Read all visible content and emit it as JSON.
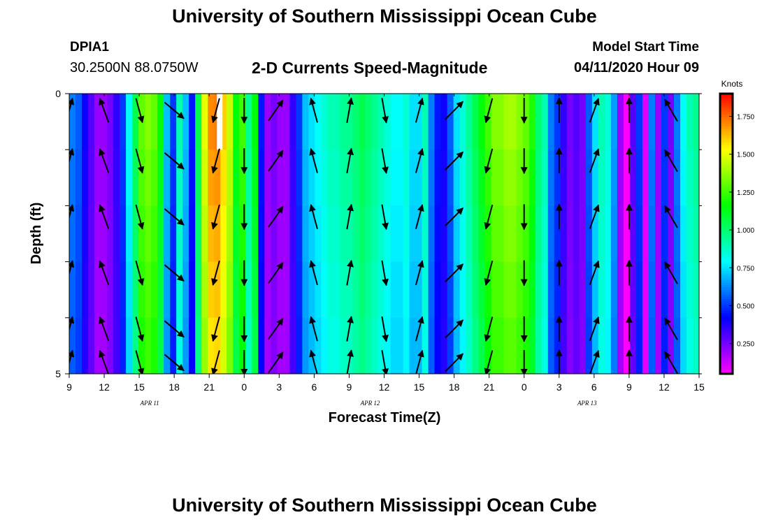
{
  "header": {
    "title": "University of Southern Mississippi Ocean Cube",
    "station_id": "DPIA1",
    "coords": "30.2500N 88.0750W",
    "chart_title": "2-D Currents Speed-Magnitude",
    "start_label": "Model Start Time",
    "start_time": "04/11/2020 Hour 09"
  },
  "footer": {
    "title": "University of Southern Mississippi Ocean Cube"
  },
  "chart_data": {
    "type": "heatmap",
    "xlabel": "Forecast Time(Z)",
    "ylabel": "Depth (ft)",
    "x_tick_labels": [
      "9",
      "12",
      "15",
      "18",
      "21",
      "0",
      "3",
      "6",
      "9",
      "12",
      "15",
      "18",
      "21",
      "0",
      "3",
      "6",
      "9",
      "12",
      "15"
    ],
    "date_labels": [
      {
        "label": "APR 11",
        "tick_index": 2.3
      },
      {
        "label": "APR 12",
        "tick_index": 8.6
      },
      {
        "label": "APR 13",
        "tick_index": 14.8
      }
    ],
    "y_tick_labels": [
      "0",
      "5"
    ],
    "ylim": [
      0,
      5
    ],
    "colorbar": {
      "unit": "Knots",
      "min": 0.05,
      "max": 1.9,
      "ticks": [
        "1.750",
        "1.500",
        "1.250",
        "1.000",
        "0.750",
        "0.500",
        "0.250"
      ],
      "tick_values": [
        1.75,
        1.5,
        1.25,
        1.0,
        0.75,
        0.5,
        0.25
      ]
    },
    "speed_profile": [
      0.6,
      0.55,
      0.4,
      0.3,
      0.2,
      0.2,
      0.25,
      0.35,
      0.5,
      0.8,
      1.05,
      1.3,
      1.35,
      1.3,
      1.15,
      0.7,
      0.5,
      0.9,
      0.7,
      0.45,
      1.05,
      1.5,
      1.7,
      1.72,
      1.6,
      1.45,
      1.15,
      1.25,
      0.95,
      1.15,
      0.45,
      0.2,
      0.25,
      0.2,
      0.2,
      0.35,
      0.5,
      0.7,
      0.75,
      0.8,
      0.85,
      0.9,
      0.9,
      0.95,
      0.95,
      1.0,
      1.05,
      1.0,
      0.95,
      0.9,
      0.85,
      0.8,
      0.8,
      0.85,
      0.75,
      0.75,
      0.9,
      0.6,
      0.45,
      0.4,
      0.55,
      0.75,
      0.85,
      0.95,
      1.05,
      1.15,
      1.25,
      1.35,
      1.35,
      1.4,
      1.4,
      1.35,
      1.3,
      1.2,
      1.0,
      0.9,
      0.6,
      0.5,
      0.35,
      0.25,
      0.3,
      0.25,
      0.55,
      0.75,
      0.9,
      0.85,
      0.65,
      0.2,
      0.05,
      0.3,
      0.5,
      0.1,
      0.6,
      0.2,
      0.5,
      0.25,
      0.6,
      0.8,
      0.9,
      0.95
    ],
    "depth_factors": [
      1.0,
      0.98,
      0.96,
      0.94,
      0.92
    ],
    "vector_times": [
      0.0,
      1.0,
      2.0,
      3.0,
      4.2,
      5.0,
      5.9,
      7.0,
      8.0,
      9.0,
      10.0,
      11.0,
      12.0,
      13.0,
      14.0,
      15.0,
      16.0,
      17.2
    ],
    "vector_depths": [
      0.3,
      1.2,
      2.2,
      3.2,
      4.2,
      4.8
    ],
    "vector_angles_deg": [
      15,
      -20,
      15,
      50,
      -15,
      0,
      35,
      -15,
      10,
      10,
      15,
      45,
      -15,
      0,
      0,
      20,
      0,
      -30
    ],
    "vector_magnitudes": [
      0.6,
      0.3,
      1.2,
      1.0,
      1.7,
      1.6,
      0.3,
      0.4,
      0.9,
      1.0,
      0.9,
      0.9,
      1.4,
      1.4,
      0.5,
      0.5,
      0.3,
      0.6
    ],
    "missing_patch": {
      "tick_index": 4.3,
      "depth_from": 0,
      "depth_to": 1.0
    }
  }
}
